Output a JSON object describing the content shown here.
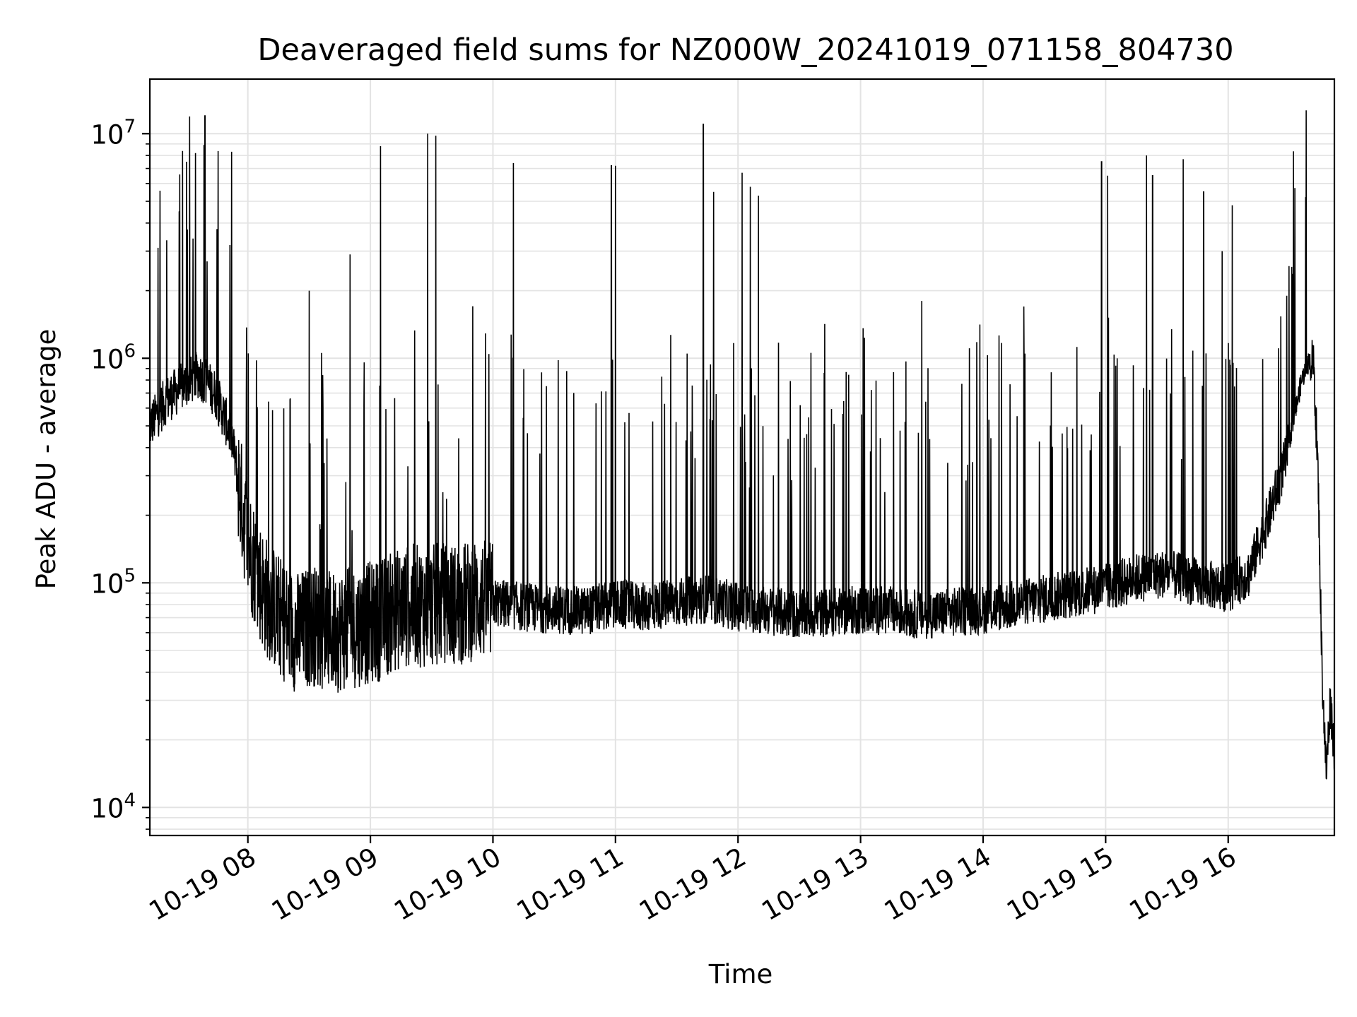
{
  "chart_data": {
    "type": "line",
    "title": "Deaveraged field sums for NZ000W_20241019_071158_804730",
    "xlabel": "Time",
    "ylabel": "Peak ADU - average",
    "yscale": "log",
    "ylim": [
      7500,
      17500000
    ],
    "xlim": [
      "2024-10-19 07:12",
      "2024-10-19 16:52"
    ],
    "grid": true,
    "legend": "none",
    "line_color": "#000000",
    "x_ticks": [
      {
        "value": "2024-10-19 08:00",
        "label": "10-19 08"
      },
      {
        "value": "2024-10-19 09:00",
        "label": "10-19 09"
      },
      {
        "value": "2024-10-19 10:00",
        "label": "10-19 10"
      },
      {
        "value": "2024-10-19 11:00",
        "label": "10-19 11"
      },
      {
        "value": "2024-10-19 12:00",
        "label": "10-19 12"
      },
      {
        "value": "2024-10-19 13:00",
        "label": "10-19 13"
      },
      {
        "value": "2024-10-19 14:00",
        "label": "10-19 14"
      },
      {
        "value": "2024-10-19 15:00",
        "label": "10-19 15"
      },
      {
        "value": "2024-10-19 16:00",
        "label": "10-19 16"
      }
    ],
    "y_ticks": [
      {
        "value": 10000,
        "base": "10",
        "exp": "4"
      },
      {
        "value": 100000,
        "base": "10",
        "exp": "5"
      },
      {
        "value": 1000000,
        "base": "10",
        "exp": "6"
      },
      {
        "value": 10000000,
        "base": "10",
        "exp": "7"
      }
    ],
    "series": [
      {
        "values": [
          [
            "2024-10-19 07:12",
            500000
          ],
          [
            "2024-10-19 07:20",
            650000
          ],
          [
            "2024-10-19 07:28",
            750000
          ],
          [
            "2024-10-19 07:36",
            850000
          ],
          [
            "2024-10-19 07:44",
            700000
          ],
          [
            "2024-10-19 07:52",
            450000
          ],
          [
            "2024-10-19 08:00",
            150000
          ],
          [
            "2024-10-19 08:08",
            90000
          ],
          [
            "2024-10-19 08:16",
            70000
          ],
          [
            "2024-10-19 08:24",
            60000
          ],
          [
            "2024-10-19 08:32",
            65000
          ],
          [
            "2024-10-19 08:40",
            60000
          ],
          [
            "2024-10-19 08:48",
            62000
          ],
          [
            "2024-10-19 08:56",
            65000
          ],
          [
            "2024-10-19 09:04",
            68000
          ],
          [
            "2024-10-19 09:12",
            75000
          ],
          [
            "2024-10-19 09:20",
            80000
          ],
          [
            "2024-10-19 09:28",
            78000
          ],
          [
            "2024-10-19 09:36",
            82000
          ],
          [
            "2024-10-19 09:44",
            80000
          ],
          [
            "2024-10-19 09:52",
            85000
          ],
          [
            "2024-10-19 10:00",
            82000
          ],
          [
            "2024-10-19 10:15",
            78000
          ],
          [
            "2024-10-19 10:30",
            76000
          ],
          [
            "2024-10-19 10:45",
            75000
          ],
          [
            "2024-10-19 11:00",
            80000
          ],
          [
            "2024-10-19 11:15",
            78000
          ],
          [
            "2024-10-19 11:30",
            82000
          ],
          [
            "2024-10-19 11:45",
            85000
          ],
          [
            "2024-10-19 12:00",
            78000
          ],
          [
            "2024-10-19 12:15",
            75000
          ],
          [
            "2024-10-19 12:30",
            72000
          ],
          [
            "2024-10-19 12:45",
            74000
          ],
          [
            "2024-10-19 13:00",
            76000
          ],
          [
            "2024-10-19 13:15",
            75000
          ],
          [
            "2024-10-19 13:30",
            72000
          ],
          [
            "2024-10-19 13:45",
            74000
          ],
          [
            "2024-10-19 14:00",
            76000
          ],
          [
            "2024-10-19 14:15",
            80000
          ],
          [
            "2024-10-19 14:30",
            85000
          ],
          [
            "2024-10-19 14:45",
            90000
          ],
          [
            "2024-10-19 15:00",
            95000
          ],
          [
            "2024-10-19 15:15",
            105000
          ],
          [
            "2024-10-19 15:30",
            110000
          ],
          [
            "2024-10-19 15:45",
            100000
          ],
          [
            "2024-10-19 16:00",
            95000
          ],
          [
            "2024-10-19 16:10",
            110000
          ],
          [
            "2024-10-19 16:20",
            200000
          ],
          [
            "2024-10-19 16:28",
            350000
          ],
          [
            "2024-10-19 16:36",
            800000
          ],
          [
            "2024-10-19 16:40",
            1000000
          ],
          [
            "2024-10-19 16:42",
            900000
          ],
          [
            "2024-10-19 16:44",
            300000
          ],
          [
            "2024-10-19 16:46",
            40000
          ],
          [
            "2024-10-19 16:48",
            14000
          ],
          [
            "2024-10-19 16:50",
            30000
          ],
          [
            "2024-10-19 16:52",
            18000
          ]
        ]
      }
    ],
    "spikes": [
      [
        "2024-10-19 07:30",
        7500000
      ],
      [
        "2024-10-19 07:39",
        12000000
      ],
      [
        "2024-10-19 07:40",
        2700000
      ],
      [
        "2024-10-19 08:50",
        2900000
      ],
      [
        "2024-10-19 09:05",
        8800000
      ],
      [
        "2024-10-19 09:28",
        10000000
      ],
      [
        "2024-10-19 09:32",
        9800000
      ],
      [
        "2024-10-19 10:10",
        7400000
      ],
      [
        "2024-10-19 10:58",
        7200000
      ],
      [
        "2024-10-19 11:00",
        7200000
      ],
      [
        "2024-10-19 11:43",
        11000000
      ],
      [
        "2024-10-19 11:48",
        5500000
      ],
      [
        "2024-10-19 12:02",
        6700000
      ],
      [
        "2024-10-19 12:06",
        5800000
      ],
      [
        "2024-10-19 12:10",
        5300000
      ],
      [
        "2024-10-19 14:58",
        7500000
      ],
      [
        "2024-10-19 15:01",
        6500000
      ],
      [
        "2024-10-19 15:20",
        8000000
      ],
      [
        "2024-10-19 15:23",
        6500000
      ],
      [
        "2024-10-19 15:38",
        7700000
      ],
      [
        "2024-10-19 15:48",
        5500000
      ],
      [
        "2024-10-19 15:57",
        3000000
      ],
      [
        "2024-10-19 16:02",
        4800000
      ],
      [
        "2024-10-19 08:30",
        2000000
      ],
      [
        "2024-10-19 13:30",
        1800000
      ],
      [
        "2024-10-19 14:20",
        1700000
      ]
    ]
  }
}
